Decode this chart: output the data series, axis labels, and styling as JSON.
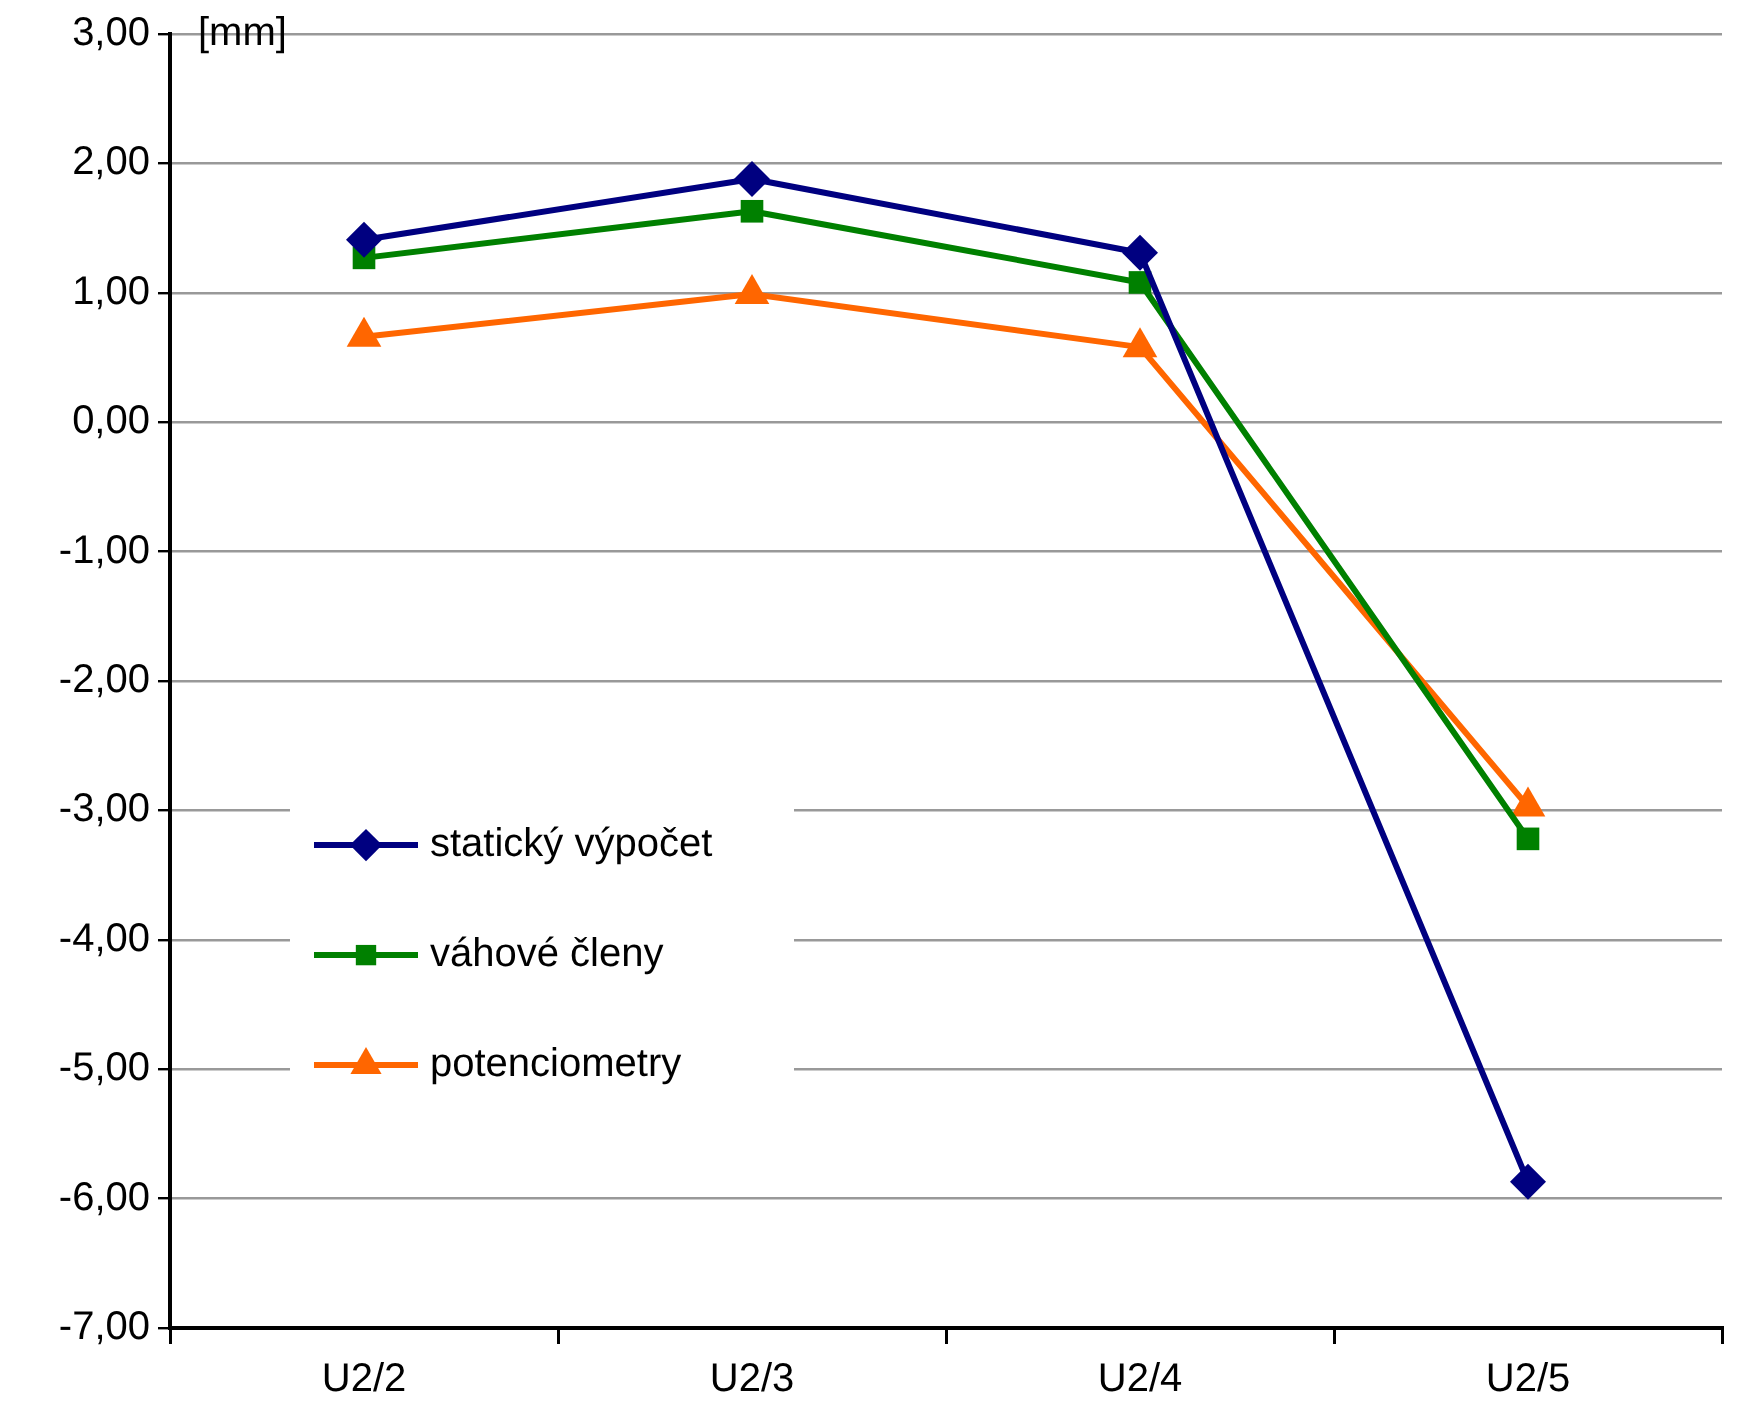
{
  "chart_data": {
    "type": "line",
    "ylabel": "[mm]",
    "categories": [
      "U2/2",
      "U2/3",
      "U2/4",
      "U2/5"
    ],
    "series": [
      {
        "name": "statický výpočet",
        "color": "#000080",
        "marker": "diamond",
        "values": [
          1.41,
          1.88,
          1.31,
          -5.87
        ]
      },
      {
        "name": "váhové členy",
        "color": "#008000",
        "marker": "square",
        "values": [
          1.27,
          1.63,
          1.08,
          -3.22
        ]
      },
      {
        "name": "potenciometry",
        "color": "#ff6600",
        "marker": "triangle",
        "values": [
          0.66,
          0.99,
          0.58,
          -2.97
        ]
      }
    ],
    "ylim": [
      -7,
      3
    ],
    "yticks": [
      {
        "value": -7,
        "label": "-7,00"
      },
      {
        "value": -6,
        "label": "-6,00"
      },
      {
        "value": -5,
        "label": "-5,00"
      },
      {
        "value": -4,
        "label": "-4,00"
      },
      {
        "value": -3,
        "label": "-3,00"
      },
      {
        "value": -2,
        "label": "-2,00"
      },
      {
        "value": -1,
        "label": "-1,00"
      },
      {
        "value": 0,
        "label": "0,00"
      },
      {
        "value": 1,
        "label": "1,00"
      },
      {
        "value": 2,
        "label": "2,00"
      },
      {
        "value": 3,
        "label": "3,00"
      }
    ],
    "grid": "y",
    "legend": "left",
    "line_style": "solid"
  }
}
